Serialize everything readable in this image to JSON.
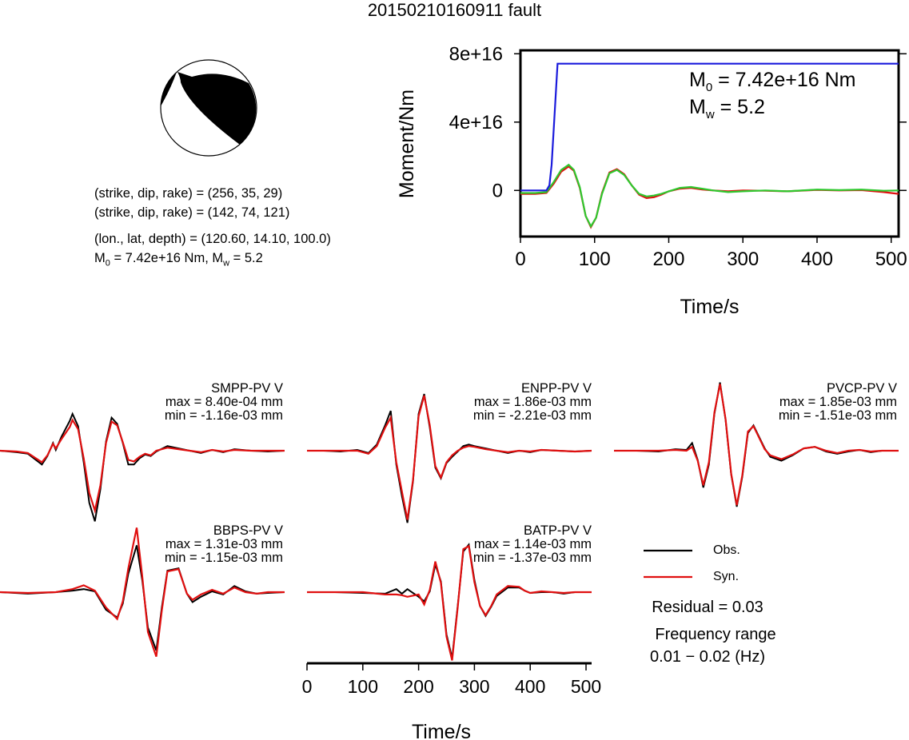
{
  "title": "20150210160911 fault",
  "focal": {
    "line1": "(strike, dip, rake) = (256, 35, 29)",
    "line2": "(strike, dip, rake) = (142, 74, 121)",
    "line3": "(lon., lat, depth) = (120.60, 14.10, 100.0)",
    "line4_prefix": "M",
    "line4_sub": "0",
    "line4_rest": " = 7.42e+16 Nm, M",
    "line4_sub2": "w",
    "line4_end": " = 5.2"
  },
  "chart_data": [
    {
      "type": "line",
      "id": "moment-rate",
      "xlabel": "Time/s",
      "ylabel": "Moment/Nm",
      "xlim": [
        0,
        510
      ],
      "ylim": [
        -2.7e+16,
        8.2e+16
      ],
      "xticks": [
        0,
        100,
        200,
        300,
        400,
        500
      ],
      "yticks": [
        0,
        4e+16,
        8e+16
      ],
      "ytick_labels": [
        "0",
        "4e+16",
        "8e+16"
      ],
      "annotation": {
        "m0_prefix": "M",
        "m0_sub": "0",
        "m0_rest": " = 7.42e+16 Nm",
        "mw_prefix": "M",
        "mw_sub": "w",
        "mw_rest": " = 5.2"
      },
      "series": [
        {
          "color": "#1a1adc",
          "x": [
            0,
            35,
            39,
            42,
            50,
            510
          ],
          "y": [
            0,
            0,
            3000000000000000.0,
            1.5e+16,
            7.42e+16,
            7.42e+16
          ]
        },
        {
          "color": "#2ec82e",
          "x": [
            0,
            20,
            35,
            45,
            55,
            65,
            72,
            80,
            88,
            95,
            102,
            110,
            120,
            130,
            140,
            150,
            160,
            170,
            180,
            190,
            200,
            215,
            230,
            245,
            260,
            280,
            300,
            330,
            360,
            400,
            430,
            460,
            490,
            510
          ],
          "y": [
            -1500000000000000.0,
            -1500000000000000.0,
            -1000000000000000.0,
            5000000000000000.0,
            1.2e+16,
            1.5e+16,
            1.2e+16,
            2000000000000000.0,
            -1.5e+16,
            -2.1e+16,
            -1.6e+16,
            -2000000000000000.0,
            1e+16,
            1.2e+16,
            9000000000000000.0,
            3000000000000000.0,
            -2000000000000000.0,
            -3500000000000000.0,
            -3000000000000000.0,
            -2000000000000000.0,
            -500000000000000.0,
            1500000000000000.0,
            2000000000000000.0,
            1000000000000000.0,
            0.0,
            -1000000000000000.0,
            -500000000000000.0,
            0.0,
            -500000000000000.0,
            500000000000000.0,
            200000000000000.0,
            500000000000000.0,
            -200000000000000.0,
            0.0
          ]
        },
        {
          "color": "#e01010",
          "x": [
            0,
            20,
            35,
            45,
            55,
            65,
            72,
            80,
            88,
            95,
            102,
            110,
            120,
            130,
            140,
            150,
            160,
            170,
            180,
            190,
            200,
            215,
            230,
            245,
            260,
            280,
            300,
            330,
            360,
            400,
            430,
            460,
            490,
            510
          ],
          "y": [
            -2000000000000000.0,
            -2000000000000000.0,
            -1500000000000000.0,
            4000000000000000.0,
            1.1e+16,
            1.4e+16,
            1.15e+16,
            1500000000000000.0,
            -1.5e+16,
            -2.15e+16,
            -1.6e+16,
            -1500000000000000.0,
            1.05e+16,
            1.25e+16,
            9500000000000000.0,
            3000000000000000.0,
            -2500000000000000.0,
            -4500000000000000.0,
            -4000000000000000.0,
            -2500000000000000.0,
            -500000000000000.0,
            1000000000000000.0,
            1500000000000000.0,
            500000000000000.0,
            0.0,
            -500000000000000.0,
            0.0,
            -200000000000000.0,
            -500000000000000.0,
            300000000000000.0,
            0.0,
            200000000000000.0,
            -1000000000000000.0,
            -2000000000000000.0
          ]
        }
      ]
    },
    {
      "type": "line",
      "id": "waveforms",
      "xlabel": "Time/s",
      "xlim": [
        0,
        510
      ],
      "xticks": [
        0,
        100,
        200,
        300,
        400,
        500
      ],
      "panels": [
        {
          "station": "SMPP-PV V",
          "max": "max = 8.40e-04 mm",
          "min": "min = -1.16e-03 mm",
          "obs": {
            "x": [
              0,
              30,
              50,
              75,
              85,
              95,
              100,
              110,
              125,
              130,
              140,
              150,
              160,
              170,
              180,
              190,
              200,
              210,
              220,
              230,
              240,
              250,
              260,
              270,
              280,
              300,
              320,
              340,
              360,
              380,
              400,
              420,
              450,
              480,
              510
            ],
            "y": [
              0,
              -0.2,
              -0.4,
              -1.8,
              -0.7,
              1.0,
              0.1,
              1.8,
              3.9,
              4.8,
              3.2,
              -1.5,
              -6.8,
              -9.2,
              -5.0,
              1.2,
              4.3,
              3.5,
              1.0,
              -1.8,
              -1.8,
              -1.0,
              -0.5,
              -0.7,
              -0.1,
              0.6,
              0.3,
              0,
              -0.3,
              0.1,
              -0.2,
              0.2,
              0,
              -0.1,
              0
            ]
          },
          "syn": {
            "x": [
              0,
              30,
              50,
              75,
              85,
              95,
              100,
              110,
              125,
              130,
              140,
              150,
              160,
              170,
              180,
              190,
              200,
              210,
              220,
              230,
              240,
              250,
              260,
              270,
              280,
              300,
              320,
              340,
              360,
              380,
              400,
              420,
              450,
              480,
              510
            ],
            "y": [
              0,
              -0.1,
              -0.3,
              -1.5,
              -0.6,
              0.9,
              0.3,
              1.5,
              3.1,
              4.0,
              2.8,
              -1.0,
              -5.5,
              -7.8,
              -4.5,
              1.0,
              3.8,
              3.3,
              1.1,
              -1.2,
              -1.4,
              -0.8,
              -0.4,
              -0.6,
              0,
              0.4,
              0.2,
              0,
              -0.2,
              0.1,
              -0.1,
              0.1,
              0,
              0,
              0
            ]
          }
        },
        {
          "station": "ENPP-PV V",
          "max": "max = 1.86e-03 mm",
          "min": "min = -2.21e-03 mm",
          "obs": {
            "x": [
              0,
              30,
              60,
              90,
              110,
              125,
              140,
              150,
              160,
              170,
              180,
              190,
              200,
              210,
              220,
              230,
              240,
              250,
              260,
              270,
              280,
              290,
              300,
              320,
              340,
              360,
              380,
              400,
              420,
              450,
              480,
              510
            ],
            "y": [
              0,
              0,
              -0.1,
              0.1,
              -0.3,
              0.8,
              3.3,
              5.2,
              -1.8,
              -5.9,
              -9.4,
              -4.0,
              4.8,
              7.4,
              3.0,
              -2.2,
              -3.6,
              -1.6,
              -0.8,
              -0.1,
              0.6,
              0.8,
              0.6,
              0.3,
              0,
              -0.3,
              0,
              -0.2,
              0.1,
              0,
              -0.1,
              0
            ]
          },
          "syn": {
            "x": [
              0,
              30,
              60,
              90,
              110,
              125,
              140,
              150,
              160,
              170,
              180,
              190,
              200,
              210,
              220,
              230,
              240,
              250,
              260,
              270,
              280,
              290,
              300,
              320,
              340,
              360,
              380,
              400,
              420,
              450,
              480,
              510
            ],
            "y": [
              0,
              0,
              0,
              0,
              -0.4,
              0.6,
              3.0,
              4.3,
              -1.5,
              -5.3,
              -9.0,
              -3.8,
              4.5,
              7.2,
              3.3,
              -2.0,
              -3.5,
              -1.5,
              -0.6,
              0,
              0.4,
              0.6,
              0.5,
              0.2,
              0,
              -0.2,
              0,
              -0.1,
              0.1,
              0,
              -0.1,
              0
            ]
          }
        },
        {
          "station": "PVCP-PV V",
          "max": "max = 1.85e-03 mm",
          "min": "min = -1.51e-03 mm",
          "obs": {
            "x": [
              0,
              40,
              80,
              110,
              130,
              140,
              150,
              160,
              170,
              180,
              190,
              200,
              210,
              220,
              230,
              240,
              250,
              260,
              270,
              280,
              300,
              320,
              340,
              360,
              380,
              400,
              420,
              440,
              460,
              480,
              510
            ],
            "y": [
              0,
              0,
              -0.1,
              0.2,
              0.1,
              1.0,
              -1.2,
              -4.8,
              -1.8,
              4.8,
              8.9,
              4.0,
              -3.1,
              -7.3,
              -3.4,
              2.3,
              3.3,
              1.8,
              0.3,
              -0.8,
              -1.3,
              -0.6,
              0.3,
              0.5,
              -0.1,
              -0.4,
              -0.1,
              0.1,
              -0.2,
              0,
              0
            ]
          },
          "syn": {
            "x": [
              0,
              40,
              80,
              110,
              130,
              140,
              150,
              160,
              170,
              180,
              190,
              200,
              210,
              220,
              230,
              240,
              250,
              260,
              270,
              280,
              300,
              320,
              340,
              360,
              380,
              400,
              420,
              440,
              460,
              480,
              510
            ],
            "y": [
              0,
              0,
              0,
              0.1,
              0,
              0.5,
              -1.3,
              -4.5,
              -1.5,
              5.0,
              8.7,
              4.1,
              -3.0,
              -7.1,
              -3.2,
              2.5,
              3.2,
              1.7,
              0.2,
              -0.6,
              -1.1,
              -0.5,
              0.3,
              0.5,
              0,
              -0.3,
              0,
              0.1,
              -0.1,
              0,
              0
            ]
          }
        },
        {
          "station": "BBPS-PV V",
          "max": "max = 1.31e-03 mm",
          "min": "min = -1.15e-03 mm",
          "obs": {
            "x": [
              0,
              50,
              100,
              130,
              150,
              170,
              190,
              210,
              220,
              230,
              245,
              255,
              265,
              280,
              290,
              300,
              320,
              335,
              345,
              360,
              380,
              400,
              420,
              440,
              460,
              480,
              510
            ],
            "y": [
              0,
              -0.2,
              0,
              0.2,
              0.4,
              0.1,
              -2.3,
              -3.3,
              -1.5,
              2.4,
              6.1,
              1.5,
              -4.6,
              -7.6,
              -2.0,
              2.8,
              3.1,
              -0.2,
              -1.3,
              -0.6,
              0.1,
              -0.3,
              0.8,
              0.1,
              -0.2,
              -0.1,
              0
            ]
          },
          "syn": {
            "x": [
              0,
              50,
              100,
              130,
              150,
              170,
              190,
              210,
              220,
              230,
              245,
              255,
              265,
              280,
              290,
              300,
              320,
              335,
              345,
              360,
              380,
              400,
              420,
              440,
              460,
              480,
              510
            ],
            "y": [
              0,
              -0.1,
              0,
              0.4,
              0.9,
              0.2,
              -2.0,
              -3.5,
              -1.2,
              3.1,
              8.4,
              2.0,
              -5.2,
              -8.4,
              -2.4,
              2.7,
              3.0,
              -0.2,
              -1.0,
              -0.3,
              0.3,
              -0.2,
              0.6,
              0,
              -0.2,
              0,
              0
            ]
          }
        },
        {
          "station": "BATP-PV V",
          "max": "max = 1.14e-03 mm",
          "min": "min = -1.37e-03 mm",
          "obs": {
            "x": [
              0,
              50,
              100,
              140,
              160,
              170,
              180,
              200,
              210,
              220,
              230,
              240,
              250,
              260,
              270,
              280,
              290,
              300,
              310,
              320,
              330,
              340,
              360,
              380,
              390,
              400,
              420,
              440,
              460,
              480,
              510
            ],
            "y": [
              0,
              0,
              -0.1,
              -0.2,
              0.4,
              -0.2,
              0.4,
              -0.6,
              -1.2,
              0.1,
              3.6,
              1.4,
              -5.5,
              -8.6,
              -1.8,
              5.3,
              6.2,
              1.6,
              -1.8,
              -3.1,
              -1.9,
              -0.5,
              0.6,
              0.6,
              0.2,
              -0.1,
              0,
              0,
              -0.2,
              0,
              0
            ]
          },
          "syn": {
            "x": [
              0,
              50,
              100,
              140,
              160,
              170,
              180,
              200,
              210,
              220,
              230,
              240,
              250,
              260,
              270,
              280,
              290,
              300,
              310,
              320,
              330,
              340,
              360,
              380,
              390,
              400,
              420,
              440,
              460,
              480,
              510
            ],
            "y": [
              0,
              0,
              0,
              -0.3,
              -0.3,
              -0.4,
              -0.6,
              -0.3,
              -1.6,
              0.3,
              4.0,
              1.2,
              -5.8,
              -8.9,
              -2.0,
              5.6,
              6.0,
              1.3,
              -1.8,
              -3.0,
              -1.8,
              -0.3,
              0.8,
              0.7,
              0.2,
              -0.1,
              0.1,
              0,
              -0.1,
              0,
              0
            ]
          }
        }
      ]
    }
  ],
  "legend": {
    "obs_label": "Obs.",
    "syn_label": "Syn.",
    "obs_color": "#000000",
    "syn_color": "#e01010",
    "residual": "Residual = 0.03",
    "freq_title": "Frequency range",
    "freq_value": "0.01 − 0.02 (Hz)"
  }
}
